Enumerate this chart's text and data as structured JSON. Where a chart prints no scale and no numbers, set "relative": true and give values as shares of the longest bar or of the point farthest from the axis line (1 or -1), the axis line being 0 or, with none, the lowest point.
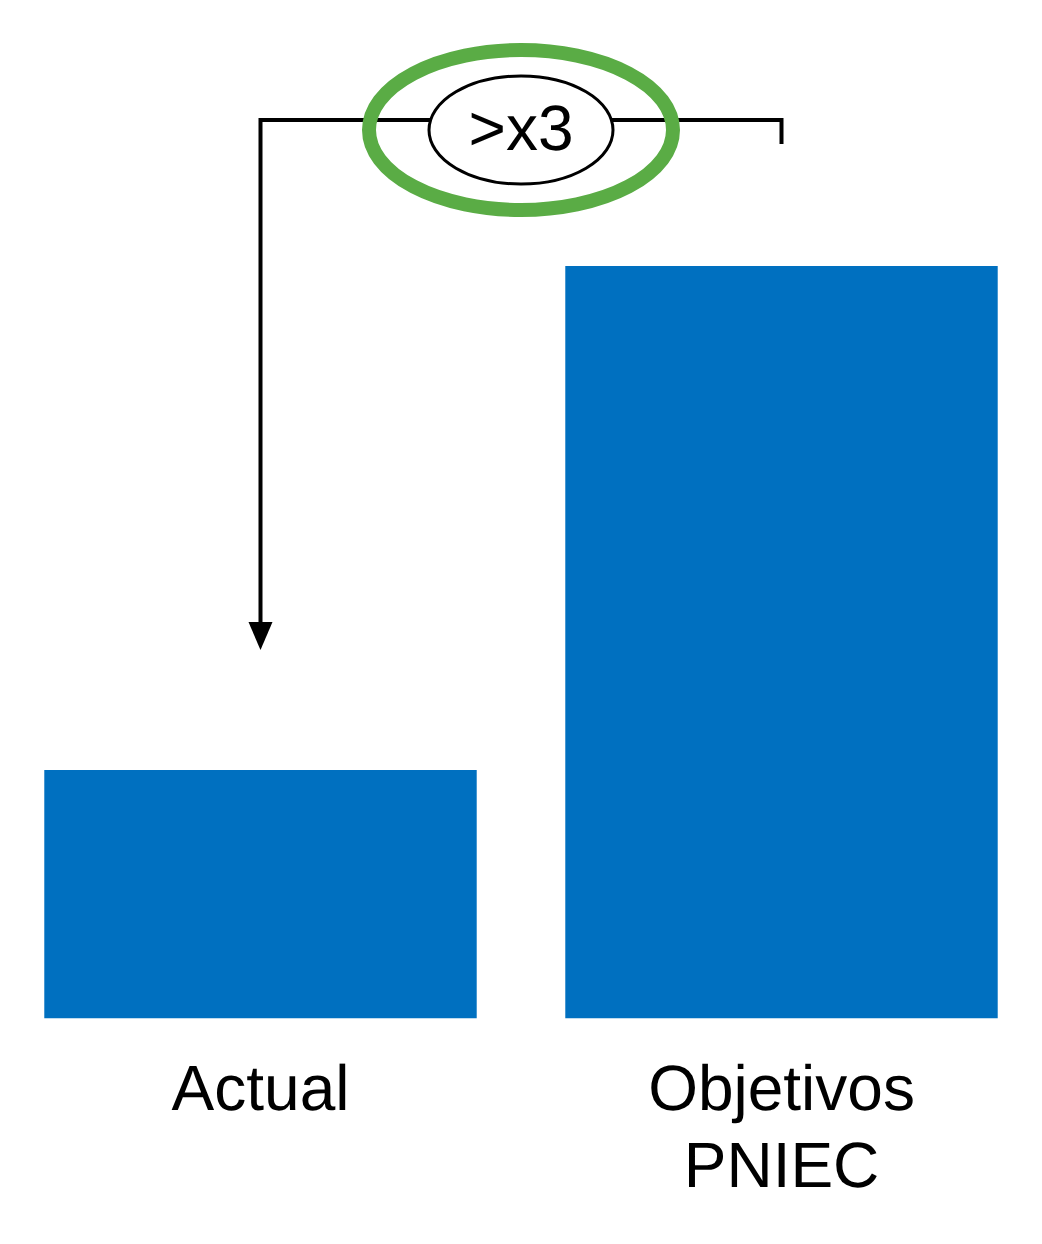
{
  "chart_data": {
    "type": "bar",
    "relative": true,
    "categories": [
      "Actual",
      "Objetivos PNIEC"
    ],
    "values": [
      0.33,
      1
    ],
    "color": "#0070c0",
    "grid": false,
    "legend": false,
    "annotations": [
      ">x3"
    ]
  }
}
